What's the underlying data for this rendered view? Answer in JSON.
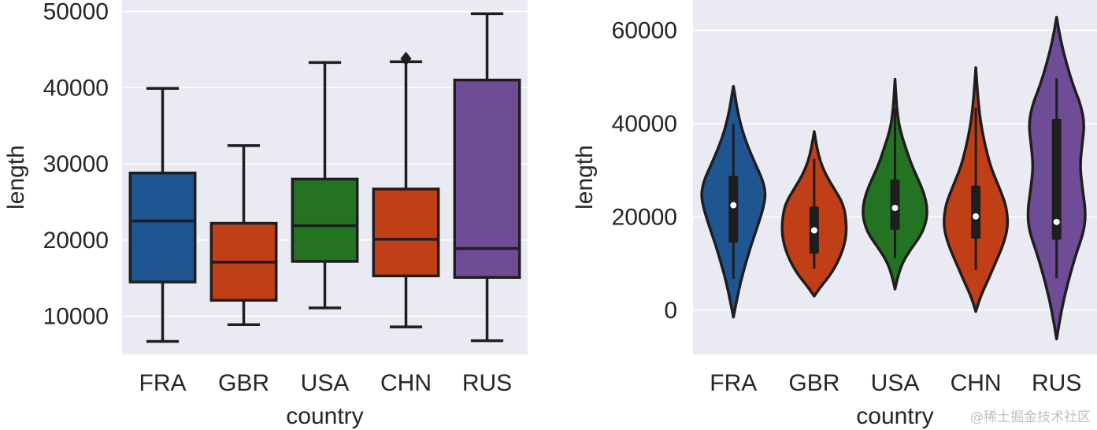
{
  "chart_data": [
    {
      "type": "box",
      "xlabel": "country",
      "ylabel": "length",
      "ylim": [
        5000,
        51500
      ],
      "yticks": [
        10000,
        20000,
        30000,
        40000,
        50000
      ],
      "ytick_labels": [
        "10000",
        "20000",
        "30000",
        "40000",
        "50000"
      ],
      "grid": true,
      "categories": [
        "FRA",
        "GBR",
        "USA",
        "CHN",
        "RUS"
      ],
      "colors": [
        "#1f5591",
        "#c13f16",
        "#237323",
        "#c13f16",
        "#6e4c96"
      ],
      "boxes": [
        {
          "min": 6700,
          "q1": 14500,
          "median": 22500,
          "q3": 28800,
          "max": 39900,
          "outliers": []
        },
        {
          "min": 8900,
          "q1": 12100,
          "median": 17100,
          "q3": 22200,
          "max": 32400,
          "outliers": []
        },
        {
          "min": 11100,
          "q1": 17200,
          "median": 21900,
          "q3": 28000,
          "max": 43300,
          "outliers": []
        },
        {
          "min": 8600,
          "q1": 15300,
          "median": 20100,
          "q3": 26700,
          "max": 43400,
          "outliers": [
            43800
          ]
        },
        {
          "min": 6800,
          "q1": 15100,
          "median": 18900,
          "q3": 41000,
          "max": 49700,
          "outliers": []
        }
      ]
    },
    {
      "type": "violin",
      "xlabel": "country",
      "ylabel": "length",
      "ylim": [
        -9500,
        66500
      ],
      "yticks": [
        0,
        20000,
        40000,
        60000
      ],
      "ytick_labels": [
        "0",
        "20000",
        "40000",
        "60000"
      ],
      "grid": true,
      "categories": [
        "FRA",
        "GBR",
        "USA",
        "CHN",
        "RUS"
      ],
      "colors": [
        "#1f5591",
        "#c13f16",
        "#237323",
        "#c13f16",
        "#6e4c96"
      ],
      "violins": [
        {
          "min": -1500,
          "max": 48000,
          "whisker_low": 6700,
          "whisker_high": 39900,
          "q1": 14500,
          "median": 22500,
          "q3": 28800,
          "profile": [
            [
              -1500,
              0
            ],
            [
              2000,
              0.1
            ],
            [
              6000,
              0.22
            ],
            [
              10000,
              0.38
            ],
            [
              14000,
              0.55
            ],
            [
              18000,
              0.75
            ],
            [
              22000,
              0.93
            ],
            [
              25000,
              1.0
            ],
            [
              28000,
              0.9
            ],
            [
              31000,
              0.7
            ],
            [
              35000,
              0.45
            ],
            [
              39000,
              0.25
            ],
            [
              43000,
              0.12
            ],
            [
              46000,
              0.05
            ],
            [
              48000,
              0
            ]
          ]
        },
        {
          "min": 3000,
          "max": 38300,
          "whisker_low": 8900,
          "whisker_high": 32400,
          "q1": 12100,
          "median": 17100,
          "q3": 22200,
          "profile": [
            [
              3000,
              0
            ],
            [
              5000,
              0.2
            ],
            [
              8000,
              0.55
            ],
            [
              12000,
              0.85
            ],
            [
              16000,
              1.0
            ],
            [
              20000,
              0.98
            ],
            [
              23000,
              0.88
            ],
            [
              26000,
              0.62
            ],
            [
              29000,
              0.36
            ],
            [
              32000,
              0.18
            ],
            [
              35000,
              0.08
            ],
            [
              38300,
              0
            ]
          ]
        },
        {
          "min": 4500,
          "max": 49500,
          "whisker_low": 11100,
          "whisker_high": 43300,
          "q1": 17200,
          "median": 21900,
          "q3": 28000,
          "profile": [
            [
              4500,
              0
            ],
            [
              7000,
              0.08
            ],
            [
              10000,
              0.22
            ],
            [
              13000,
              0.48
            ],
            [
              16000,
              0.8
            ],
            [
              19000,
              0.97
            ],
            [
              22000,
              1.0
            ],
            [
              25000,
              0.9
            ],
            [
              28000,
              0.72
            ],
            [
              31000,
              0.52
            ],
            [
              35000,
              0.32
            ],
            [
              39000,
              0.14
            ],
            [
              43000,
              0.06
            ],
            [
              46000,
              0.03
            ],
            [
              49500,
              0
            ]
          ]
        },
        {
          "min": -300,
          "max": 52000,
          "whisker_low": 8600,
          "whisker_high": 43400,
          "q1": 15300,
          "median": 20100,
          "q3": 26700,
          "profile": [
            [
              -300,
              0
            ],
            [
              3000,
              0.15
            ],
            [
              6000,
              0.35
            ],
            [
              10000,
              0.6
            ],
            [
              14000,
              0.85
            ],
            [
              18000,
              1.0
            ],
            [
              22000,
              0.95
            ],
            [
              25000,
              0.8
            ],
            [
              28000,
              0.62
            ],
            [
              31000,
              0.45
            ],
            [
              35000,
              0.3
            ],
            [
              39000,
              0.18
            ],
            [
              43000,
              0.1
            ],
            [
              47000,
              0.05
            ],
            [
              52000,
              0
            ]
          ]
        },
        {
          "min": -6200,
          "max": 62800,
          "whisker_low": 6800,
          "whisker_high": 49700,
          "q1": 15100,
          "median": 18900,
          "q3": 41000,
          "profile": [
            [
              -6200,
              0
            ],
            [
              0,
              0.15
            ],
            [
              6000,
              0.35
            ],
            [
              12000,
              0.6
            ],
            [
              17000,
              0.85
            ],
            [
              21000,
              0.9
            ],
            [
              26000,
              0.8
            ],
            [
              31000,
              0.72
            ],
            [
              36000,
              0.8
            ],
            [
              40000,
              0.86
            ],
            [
              44000,
              0.75
            ],
            [
              48000,
              0.52
            ],
            [
              53000,
              0.3
            ],
            [
              58000,
              0.12
            ],
            [
              62800,
              0
            ]
          ]
        }
      ]
    }
  ],
  "watermark": "@稀土掘金技术社区"
}
